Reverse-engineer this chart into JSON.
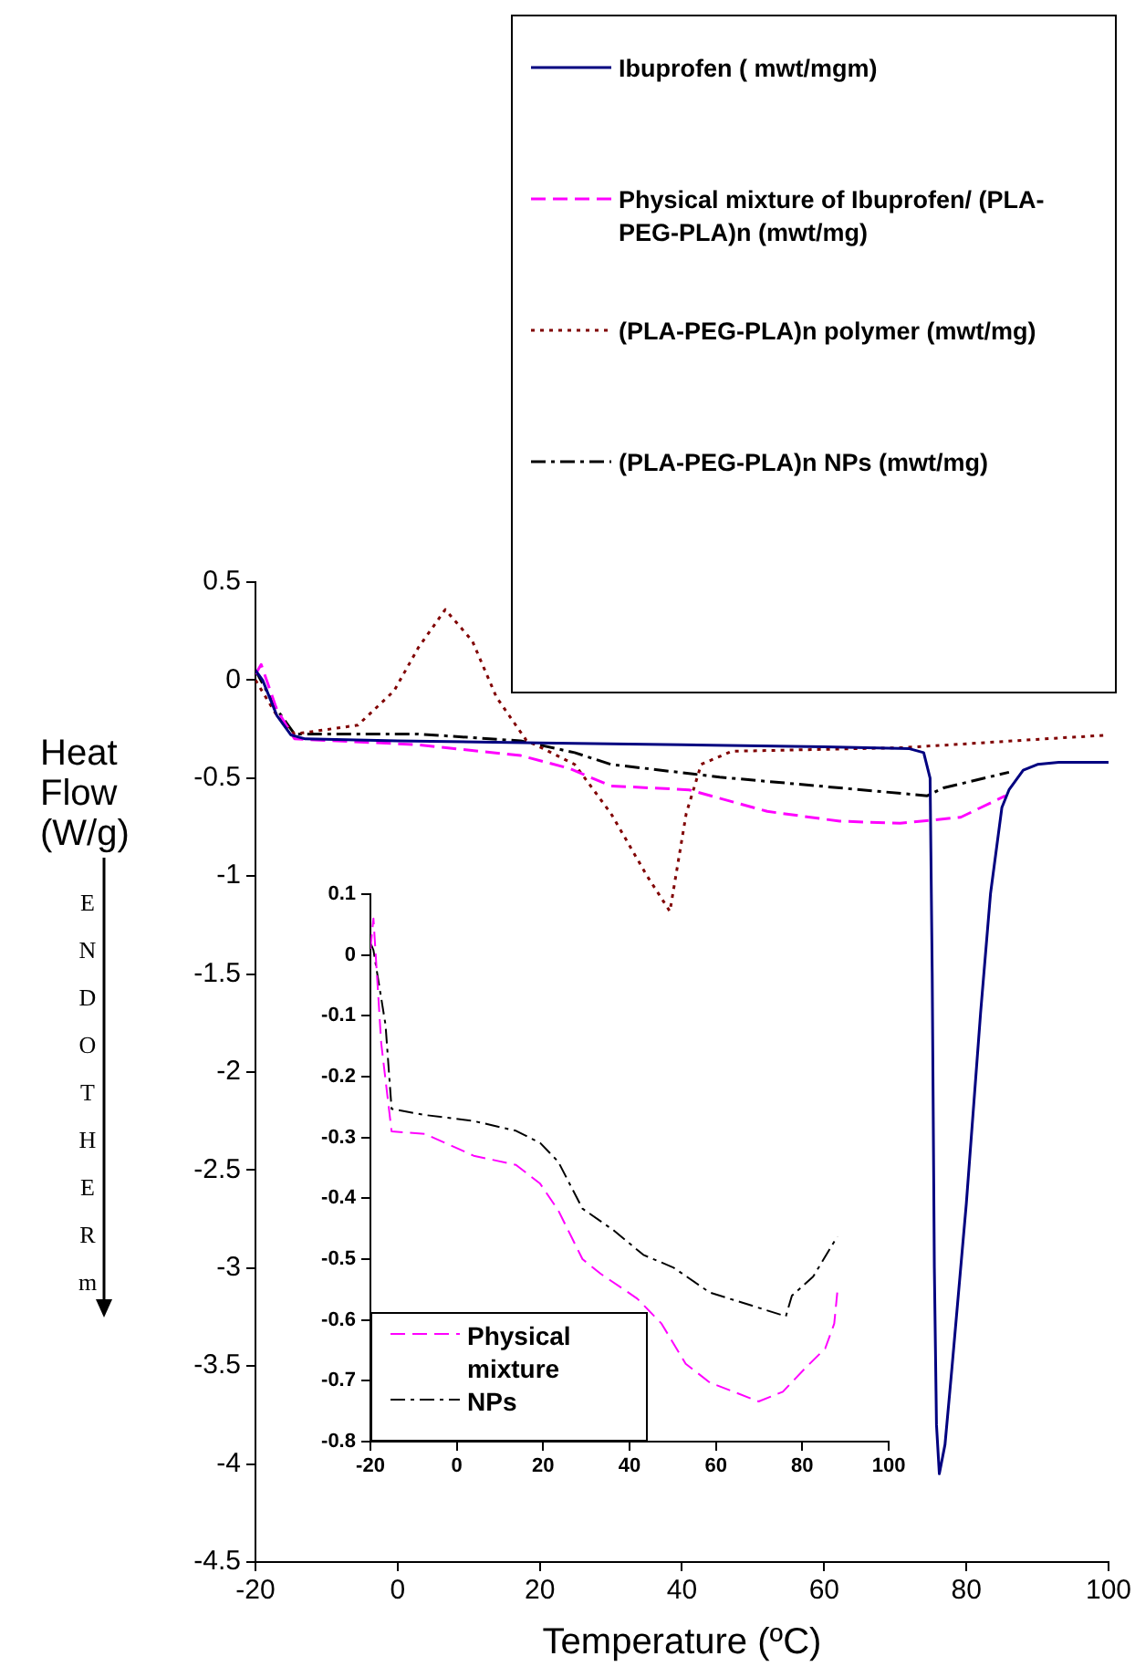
{
  "chart_data": [
    {
      "type": "line",
      "xlabel": "Temperature (ºC)",
      "ylabel": "Heat Flow (W/g)",
      "annotations": [
        "ENDOTHERm"
      ],
      "xlim": [
        -20,
        100
      ],
      "xticks": [
        -20,
        0,
        20,
        40,
        60,
        80,
        100
      ],
      "ylim": [
        -4.5,
        0.5
      ],
      "yticks": [
        0.5,
        0,
        -0.5,
        -1,
        -1.5,
        -2,
        -2.5,
        -3,
        -3.5,
        -4,
        -4.5
      ],
      "grid": false,
      "legend": "top right",
      "marker": "none",
      "series": [
        {
          "name": "Ibuprofen ( mwt/mgm)",
          "color": "#000080",
          "line_style": "solid",
          "x": [
            -20,
            -19,
            -17,
            -15,
            -13,
            0,
            20,
            40,
            60,
            72,
            74,
            74.9,
            75.2,
            75.5,
            75.8,
            76.2,
            77,
            78,
            80,
            82,
            83.4,
            85,
            86,
            88,
            90,
            93,
            100
          ],
          "values": [
            0.05,
            0,
            -0.18,
            -0.28,
            -0.3,
            -0.31,
            -0.32,
            -0.33,
            -0.34,
            -0.35,
            -0.37,
            -0.5,
            -1.5,
            -3,
            -3.8,
            -4.05,
            -3.9,
            -3.5,
            -2.67,
            -1.7,
            -1.09,
            -0.65,
            -0.56,
            -0.46,
            -0.43,
            -0.42,
            -0.42
          ]
        },
        {
          "name": "Physical mixture of Ibuprofen/ (PLA-PEG-PLA)n (mwt/mg)",
          "color": "#ff00ff",
          "line_style": "dashed",
          "x": [
            -20,
            -19.2,
            -17,
            -14.5,
            2.9,
            17.3,
            24.1,
            30,
            41,
            52,
            62.2,
            70.7,
            79.2,
            85.5
          ],
          "values": [
            0.03,
            0.08,
            -0.15,
            -0.3,
            -0.33,
            -0.385,
            -0.45,
            -0.54,
            -0.56,
            -0.67,
            -0.72,
            -0.73,
            -0.7,
            -0.59
          ]
        },
        {
          "name": "(PLA-PEG-PLA)n polymer (mwt/mg)",
          "color": "#800000",
          "line_style": "dotted",
          "x": [
            -20,
            -17,
            -14.5,
            -5.6,
            -0.5,
            2.9,
            6.7,
            10.5,
            13.9,
            18.1,
            24.9,
            30,
            35.1,
            38.3,
            40.6,
            42.7,
            47,
            71,
            100
          ],
          "values": [
            0,
            -0.18,
            -0.275,
            -0.23,
            -0.055,
            0.165,
            0.36,
            0.2,
            -0.087,
            -0.307,
            -0.43,
            -0.68,
            -1.0,
            -1.18,
            -0.68,
            -0.43,
            -0.363,
            -0.345,
            -0.28
          ]
        },
        {
          "name": "(PLA-PEG-PLA)n NPs (mwt/mg)",
          "color": "#000000",
          "line_style": "dashdot",
          "x": [
            -20,
            -17,
            -14.5,
            2.9,
            17.3,
            24.9,
            30,
            45.3,
            62.2,
            74.5,
            76.8,
            86
          ],
          "values": [
            0.05,
            -0.15,
            -0.275,
            -0.275,
            -0.31,
            -0.37,
            -0.43,
            -0.495,
            -0.55,
            -0.59,
            -0.55,
            -0.47
          ]
        }
      ]
    },
    {
      "type": "line",
      "xlim": [
        -20,
        100
      ],
      "xticks": [
        -20,
        0,
        20,
        40,
        60,
        80,
        100
      ],
      "ylim": [
        -0.8,
        0.1
      ],
      "yticks": [
        0.1,
        0,
        -0.1,
        -0.2,
        -0.3,
        -0.4,
        -0.5,
        -0.6,
        -0.7,
        -0.8
      ],
      "grid": false,
      "legend": "bottom left",
      "marker": "none",
      "series": [
        {
          "name": "Physical mixture",
          "color": "#ff00ff",
          "line_style": "dashed",
          "x": [
            -20,
            -19.3,
            -17.5,
            -15.1,
            -7.4,
            3.9,
            13.7,
            19.3,
            23.5,
            29.1,
            33.3,
            41.8,
            47.4,
            53,
            58.6,
            69.9,
            75.5,
            81,
            85.3,
            87.4,
            88.1
          ],
          "values": [
            0.01,
            0.06,
            -0.145,
            -0.29,
            -0.294,
            -0.33,
            -0.345,
            -0.376,
            -0.42,
            -0.5,
            -0.524,
            -0.565,
            -0.606,
            -0.672,
            -0.703,
            -0.734,
            -0.718,
            -0.677,
            -0.647,
            -0.606,
            -0.555
          ]
        },
        {
          "name": "NPs",
          "color": "#000000",
          "line_style": "dashdot",
          "x": [
            -20,
            -19.3,
            -16.5,
            -15.1,
            -7.4,
            3.9,
            13.7,
            19.3,
            23.5,
            29.1,
            36.2,
            43.2,
            50.2,
            58.6,
            69.9,
            76.2,
            77.6,
            82.5,
            88.1
          ],
          "values": [
            0.02,
            0.008,
            -0.115,
            -0.253,
            -0.263,
            -0.273,
            -0.289,
            -0.309,
            -0.34,
            -0.417,
            -0.452,
            -0.493,
            -0.514,
            -0.555,
            -0.58,
            -0.594,
            -0.56,
            -0.529,
            -0.463
          ]
        }
      ]
    }
  ]
}
